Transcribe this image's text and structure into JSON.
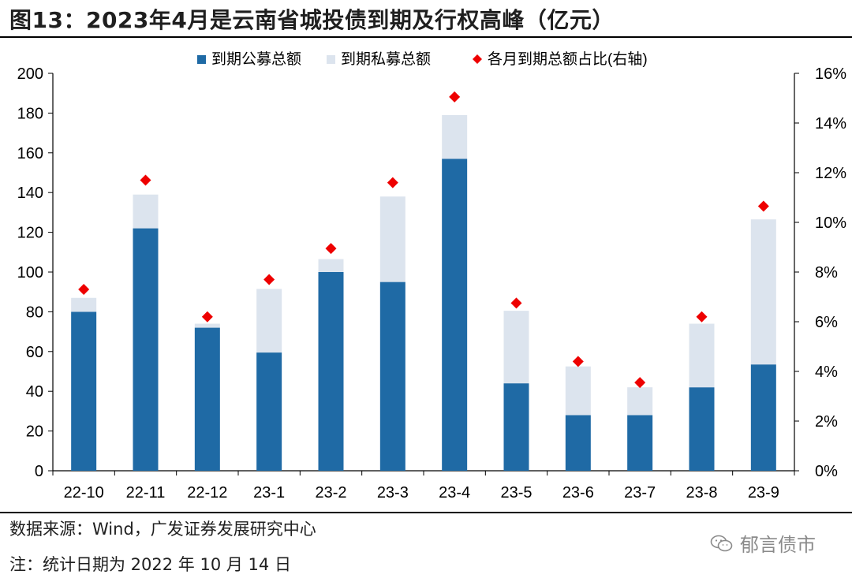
{
  "figure_title": "图13：2023年4月是云南省城投债到期及行权高峰（亿元）",
  "source_text": "数据来源：Wind，广发证券发展研究中心",
  "note_text": "注：统计日期为 2022 年 10 月 14 日",
  "watermark_text": "郁言债市",
  "watermark_icon": "wechat-icon",
  "colors": {
    "public": "#1f6aa5",
    "private": "#dce4ee",
    "ratio": "#ee0000"
  },
  "chart_data": {
    "type": "bar",
    "stacked": true,
    "categories": [
      "22-10",
      "22-11",
      "22-12",
      "23-1",
      "23-2",
      "23-3",
      "23-4",
      "23-5",
      "23-6",
      "23-7",
      "23-8",
      "23-9"
    ],
    "series": [
      {
        "name": "到期公募总额",
        "values": [
          80,
          122,
          72,
          59.5,
          100,
          95,
          157,
          44,
          28,
          28,
          42,
          53.5
        ]
      },
      {
        "name": "到期私募总额",
        "values": [
          7,
          17,
          2,
          32,
          6.5,
          43,
          22,
          36.5,
          24.5,
          14,
          32,
          73
        ]
      },
      {
        "name": "各月到期总额占比(右轴)",
        "axis": "right",
        "values": [
          7.3,
          11.7,
          6.2,
          7.7,
          8.95,
          11.6,
          15.05,
          6.75,
          4.4,
          3.55,
          6.2,
          10.65
        ]
      }
    ],
    "ylim": [
      0,
      200
    ],
    "y_ticks": [
      "0",
      "20",
      "40",
      "60",
      "80",
      "100",
      "120",
      "140",
      "160",
      "180",
      "200"
    ],
    "y2lim": [
      0,
      16
    ],
    "y2_ticks": [
      "0%",
      "2%",
      "4%",
      "6%",
      "8%",
      "10%",
      "12%",
      "14%",
      "16%"
    ],
    "grid": false,
    "legend": "top-center"
  }
}
